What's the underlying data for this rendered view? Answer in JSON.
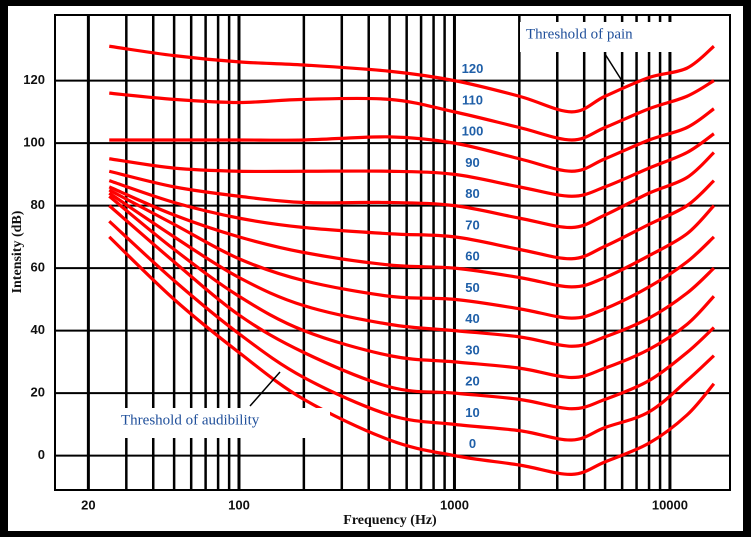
{
  "chart_data": {
    "type": "line",
    "x_label": "Frequency (Hz)",
    "y_label": "Intensity (dB)",
    "log_x": true,
    "xlim": [
      14,
      19000
    ],
    "ylim": [
      -11,
      141
    ],
    "xticks": [
      20,
      100,
      1000,
      10000
    ],
    "xminorticks": [
      30,
      40,
      50,
      60,
      70,
      80,
      90,
      200,
      300,
      400,
      500,
      600,
      700,
      800,
      900,
      2000,
      3000,
      4000,
      5000,
      6000,
      7000,
      8000,
      9000
    ],
    "yticks": [
      0,
      20,
      40,
      60,
      80,
      100,
      120
    ],
    "grid": true,
    "x": [
      25,
      50,
      100,
      200,
      500,
      1000,
      2000,
      3500,
      5000,
      8000,
      12000,
      16000
    ],
    "series": [
      {
        "name": "120",
        "color": "#ff0000",
        "values": [
          131,
          128,
          126,
          125,
          123,
          120,
          115,
          110,
          115,
          121,
          124,
          131
        ]
      },
      {
        "name": "110",
        "color": "#ff0000",
        "values": [
          116,
          114,
          113,
          114,
          114,
          110,
          105,
          101,
          105,
          111,
          115,
          120
        ]
      },
      {
        "name": "100",
        "color": "#ff0000",
        "values": [
          101,
          101,
          101,
          101,
          102,
          100,
          95,
          91,
          95,
          101,
          105,
          111
        ]
      },
      {
        "name": "90",
        "color": "#ff0000",
        "values": [
          95,
          92,
          91,
          91,
          91,
          90,
          86,
          83,
          86,
          92,
          97,
          103
        ]
      },
      {
        "name": "80",
        "color": "#ff0000",
        "values": [
          91,
          86,
          83,
          81,
          81,
          80,
          76,
          73,
          77,
          84,
          89,
          97
        ]
      },
      {
        "name": "70",
        "color": "#ff0000",
        "values": [
          88,
          81,
          76,
          73,
          71,
          70,
          66,
          63,
          67,
          74,
          80,
          88
        ]
      },
      {
        "name": "60",
        "color": "#ff0000",
        "values": [
          86,
          77,
          70,
          65,
          61,
          60,
          57,
          54,
          57,
          64,
          71,
          80
        ]
      },
      {
        "name": "50",
        "color": "#ff0000",
        "values": [
          85,
          74,
          63,
          56,
          51,
          50,
          47,
          44,
          47,
          54,
          62,
          70
        ]
      },
      {
        "name": "40",
        "color": "#ff0000",
        "values": [
          84,
          70,
          57,
          48,
          42,
          40,
          38,
          35,
          38,
          44,
          52,
          60
        ]
      },
      {
        "name": "30",
        "color": "#ff0000",
        "values": [
          83,
          66,
          51,
          40,
          32,
          30,
          28,
          25,
          28,
          34,
          42,
          51
        ]
      },
      {
        "name": "20",
        "color": "#ff0000",
        "values": [
          80,
          62,
          45,
          33,
          22,
          20,
          18,
          15,
          18,
          24,
          33,
          41
        ]
      },
      {
        "name": "10",
        "color": "#ff0000",
        "values": [
          75,
          56,
          39,
          25,
          13,
          10,
          8,
          5,
          9,
          14,
          24,
          32
        ]
      },
      {
        "name": "0",
        "color": "#ff0000",
        "values": [
          70,
          50,
          33,
          18,
          5,
          0,
          -3,
          -6,
          -2,
          4,
          13,
          23
        ]
      }
    ],
    "annotations": [
      {
        "text": "Threshold of pain"
      },
      {
        "text": "Threshold of audibility"
      }
    ]
  }
}
